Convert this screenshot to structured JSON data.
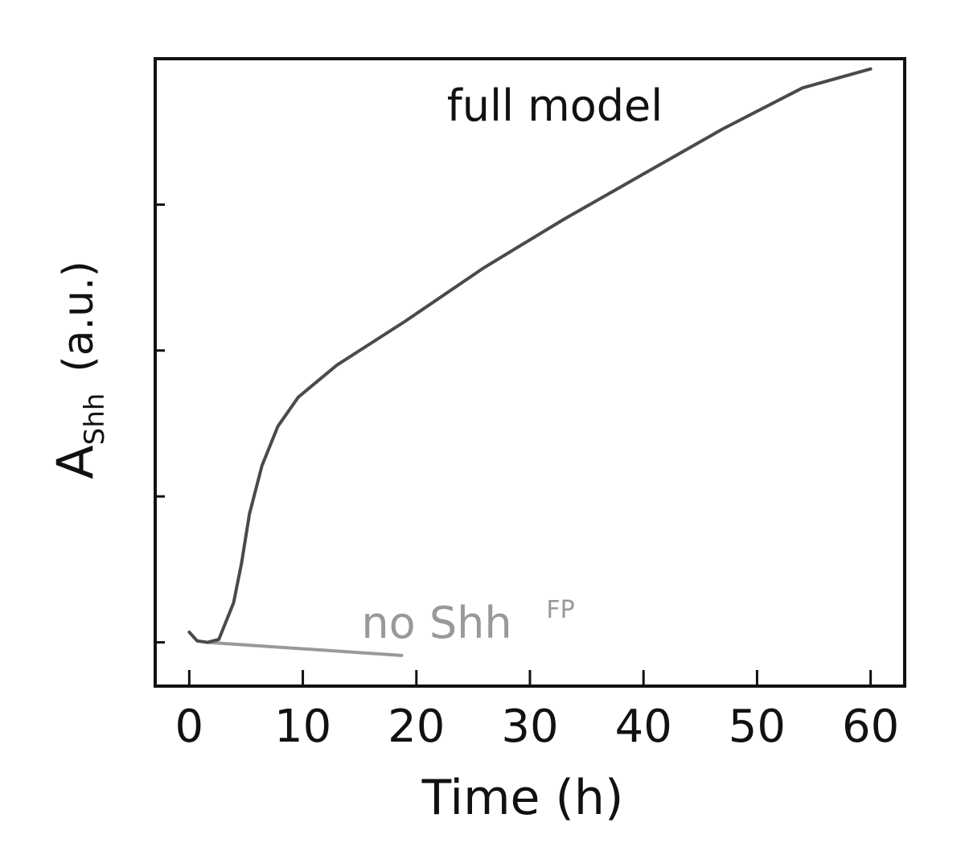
{
  "chart_data": {
    "type": "line",
    "xlabel": "Time (h)",
    "ylabel": {
      "main": "A",
      "subscript": "Shh",
      "unit": "(a.u.)"
    },
    "xlim": [
      -3,
      63
    ],
    "xticks": [
      0,
      10,
      20,
      30,
      40,
      50,
      60
    ],
    "ylim": [
      -0.3,
      4
    ],
    "yticks": [
      0,
      1,
      2,
      3
    ],
    "series": [
      {
        "name": "full model",
        "color": "#4a4a4a",
        "x": [
          0,
          0.7,
          1.6,
          2.6,
          3.9,
          4.6,
          5.3,
          6.4,
          7.8,
          9.6,
          13,
          19,
          26,
          33,
          40,
          47,
          54,
          60
        ],
        "values": [
          0.07,
          0.01,
          0,
          0.02,
          0.27,
          0.54,
          0.88,
          1.21,
          1.48,
          1.68,
          1.9,
          2.2,
          2.57,
          2.9,
          3.21,
          3.52,
          3.8,
          3.93
        ]
      },
      {
        "name": "no Shh",
        "name_superscript": "FP",
        "color": "#999999",
        "x": [
          1.6,
          18.7
        ],
        "values": [
          0,
          -0.09
        ]
      }
    ]
  }
}
